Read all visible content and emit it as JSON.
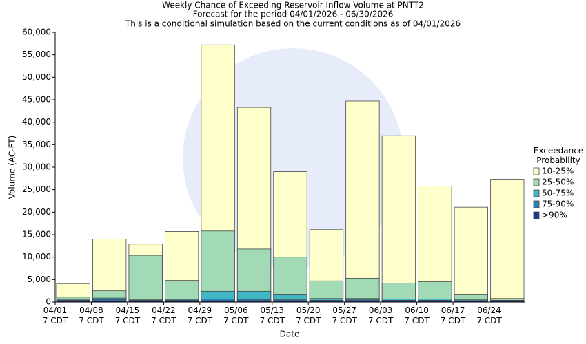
{
  "chart_data": {
    "type": "bar",
    "title": "Weekly Chance of Exceeding Reservoir Inflow Volume at PNTT2",
    "subtitle": [
      "Forecast for the period 04/01/2026 - 06/30/2026",
      "This is a conditional simulation based on the current conditions as of 04/01/2026"
    ],
    "x_label": "Date",
    "y_label": "Volume (AC-FT)",
    "legend_title": "Exceedance Probability",
    "categories": [
      "04/01 7 CDT",
      "04/08 7 CDT",
      "04/15 7 CDT",
      "04/22 7 CDT",
      "04/29 7 CDT",
      "05/06 7 CDT",
      "05/13 7 CDT",
      "05/20 7 CDT",
      "05/27 7 CDT",
      "06/03 7 CDT",
      "06/10 7 CDT",
      "06/17 7 CDT",
      "06/24 7 CDT"
    ],
    "series": [
      {
        "name": "10-25%",
        "color": "#ffffcc",
        "values": [
          4100,
          14000,
          12900,
          15700,
          57200,
          43300,
          29000,
          16100,
          44700,
          37000,
          25800,
          21100,
          27300
        ]
      },
      {
        "name": "25-50%",
        "color": "#a1dab4",
        "values": [
          1100,
          2500,
          10400,
          4800,
          15800,
          11800,
          10000,
          4700,
          5300,
          4200,
          4500,
          1600,
          800
        ]
      },
      {
        "name": "50-75%",
        "color": "#41b6c4",
        "values": [
          500,
          900,
          500,
          600,
          2400,
          2400,
          1600,
          800,
          800,
          700,
          700,
          500,
          400
        ]
      },
      {
        "name": "75-90%",
        "color": "#2c7fb8",
        "values": [
          400,
          600,
          400,
          400,
          700,
          600,
          500,
          400,
          500,
          400,
          400,
          300,
          300
        ]
      },
      {
        "name": ">90%",
        "color": "#253494",
        "values": [
          200,
          300,
          300,
          300,
          300,
          300,
          300,
          200,
          300,
          200,
          200,
          200,
          200
        ]
      }
    ],
    "ylim": [
      0,
      60000
    ],
    "yticks": [
      0,
      {
        "value": 5000,
        "label": "5,000"
      },
      {
        "value": 10000,
        "label": "10,000"
      },
      {
        "value": 15000,
        "label": "15,000"
      },
      {
        "value": 20000,
        "label": "20,000"
      },
      {
        "value": 25000,
        "label": "25,000"
      },
      {
        "value": 30000,
        "label": "30,000"
      },
      {
        "value": 35000,
        "label": "35,000"
      },
      {
        "value": 40000,
        "label": "40,000"
      },
      {
        "value": 45000,
        "label": "45,000"
      },
      {
        "value": 50000,
        "label": "50,000"
      },
      {
        "value": 55000,
        "label": "55,000"
      },
      {
        "value": 60000,
        "label": "60,000"
      }
    ],
    "grid": false,
    "legend": "right"
  }
}
